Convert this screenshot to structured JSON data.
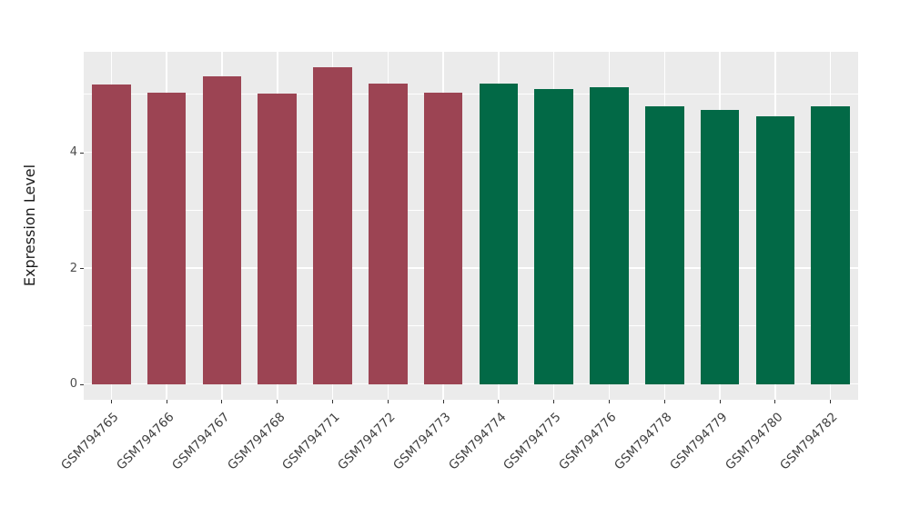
{
  "chart_data": {
    "type": "bar",
    "title": "",
    "xlabel": "",
    "ylabel": "Expression Level",
    "categories": [
      "GSM794765",
      "GSM794766",
      "GSM794767",
      "GSM794768",
      "GSM794771",
      "GSM794772",
      "GSM794773",
      "GSM794774",
      "GSM794775",
      "GSM794776",
      "GSM794778",
      "GSM794779",
      "GSM794780",
      "GSM794782"
    ],
    "values": [
      5.17,
      5.03,
      5.32,
      5.02,
      5.48,
      5.19,
      5.04,
      5.19,
      5.1,
      5.13,
      4.8,
      4.73,
      4.62,
      4.8
    ],
    "bar_colors": [
      "red",
      "red",
      "red",
      "red",
      "red",
      "red",
      "red",
      "green",
      "green",
      "green",
      "green",
      "green",
      "green",
      "green"
    ],
    "palette": {
      "red": "#9C4453",
      "green": "#026946"
    },
    "yticks": [
      0,
      2,
      4
    ],
    "minor_gridlines": [
      1,
      3,
      5
    ],
    "ylim": [
      0,
      5.75
    ],
    "grid": true,
    "legend": "none",
    "panel_background": "#EBEBEB",
    "gridline_color": "#FFFFFF"
  }
}
